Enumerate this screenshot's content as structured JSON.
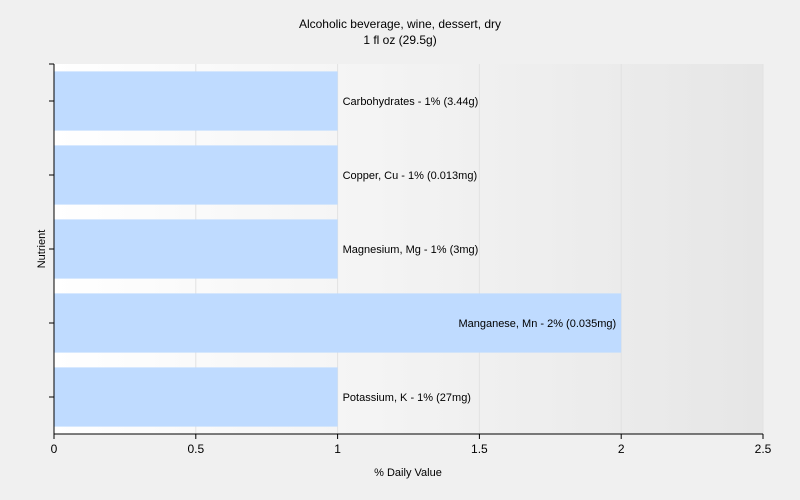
{
  "chart_data": {
    "type": "bar",
    "orientation": "horizontal",
    "title": "Alcoholic beverage, wine, dessert, dry",
    "subtitle": "1 fl oz (29.5g)",
    "xlabel": "% Daily Value",
    "ylabel": "Nutrient",
    "xlim": [
      0,
      2.5
    ],
    "xticks": [
      "0",
      "0.5",
      "1",
      "1.5",
      "2",
      "2.5"
    ],
    "xtick_values": [
      0,
      0.5,
      1,
      1.5,
      2,
      2.5
    ],
    "grid": "vertical",
    "legend": "none",
    "bar_color": "#bfdbff",
    "categories": [
      "Potassium, K",
      "Manganese, Mn",
      "Magnesium, Mg",
      "Copper, Cu",
      "Carbohydrates"
    ],
    "values": [
      1,
      2,
      1,
      1,
      1
    ],
    "labels": [
      "Potassium, K - 1% (27mg)",
      "Manganese, Mn - 2% (0.035mg)",
      "Magnesium, Mg - 1% (3mg)",
      "Copper, Cu - 1% (0.013mg)",
      "Carbohydrates - 1% (3.44g)"
    ]
  }
}
